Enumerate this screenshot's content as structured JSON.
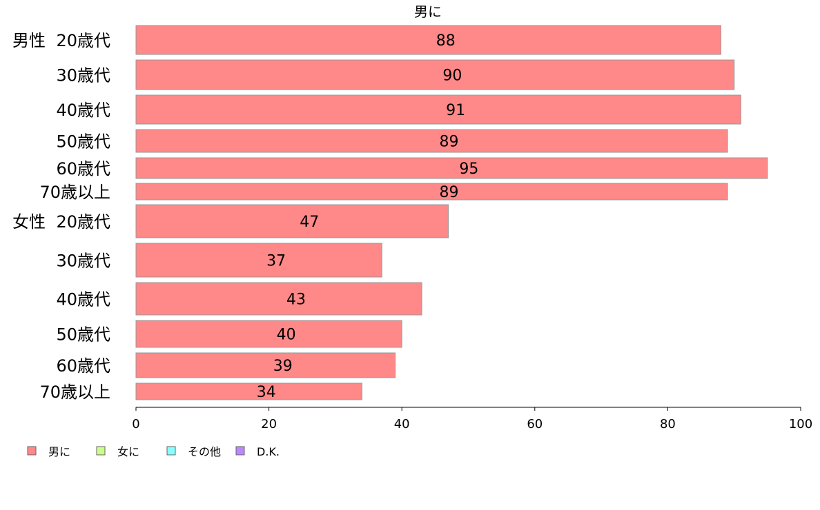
{
  "chart_data": {
    "type": "bar",
    "orientation": "horizontal",
    "title": "男に",
    "xlabel": "",
    "ylabel": "",
    "xlim": [
      0,
      100
    ],
    "xticks": [
      0,
      20,
      40,
      60,
      80,
      100
    ],
    "grid": false,
    "groups": [
      {
        "label": "男性",
        "categories": [
          "20歳代",
          "30歳代",
          "40歳代",
          "50歳代",
          "60歳代",
          "70歳以上"
        ]
      },
      {
        "label": "女性",
        "categories": [
          "20歳代",
          "30歳代",
          "40歳代",
          "50歳代",
          "60歳代",
          "70歳以上"
        ]
      }
    ],
    "series": [
      {
        "name": "男に",
        "color": "#ff8888",
        "values": [
          88,
          90,
          91,
          89,
          95,
          89,
          47,
          37,
          43,
          40,
          39,
          34
        ]
      }
    ],
    "data_labels": [
      "88",
      "90",
      "91",
      "89",
      "95",
      "89",
      "47",
      "37",
      "43",
      "40",
      "39",
      "34"
    ],
    "legend": {
      "position": "bottom-left",
      "items": [
        {
          "label": "男に",
          "color": "#ff8888"
        },
        {
          "label": "女に",
          "color": "#ccff88"
        },
        {
          "label": "その他",
          "color": "#88ffff"
        },
        {
          "label": "D.K.",
          "color": "#bb88ff"
        }
      ]
    }
  }
}
